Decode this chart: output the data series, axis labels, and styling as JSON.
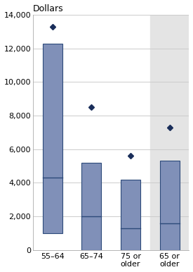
{
  "categories": [
    "55–64",
    "65–74",
    "75 or\nolder",
    "65 or\nolder"
  ],
  "boxes": [
    {
      "q1": 1000,
      "median": 4300,
      "q3": 12300,
      "mean": 13300
    },
    {
      "q1": 0,
      "median": 2000,
      "q3": 5200,
      "mean": 8500
    },
    {
      "q1": 0,
      "median": 1300,
      "q3": 4200,
      "mean": 5600
    },
    {
      "q1": 0,
      "median": 1600,
      "q3": 5300,
      "mean": 7300
    }
  ],
  "box_color": "#8090b8",
  "box_edge_color": "#2d4a7a",
  "mean_marker_color": "#1a2e5a",
  "shaded_bg_color": "#e4e4e4",
  "shaded_indices": [
    3
  ],
  "title": "Dollars",
  "ylim": [
    0,
    14000
  ],
  "yticks": [
    0,
    2000,
    4000,
    6000,
    8000,
    10000,
    12000,
    14000
  ],
  "grid_color": "#cccccc",
  "background_color": "#ffffff",
  "bar_width": 0.5
}
